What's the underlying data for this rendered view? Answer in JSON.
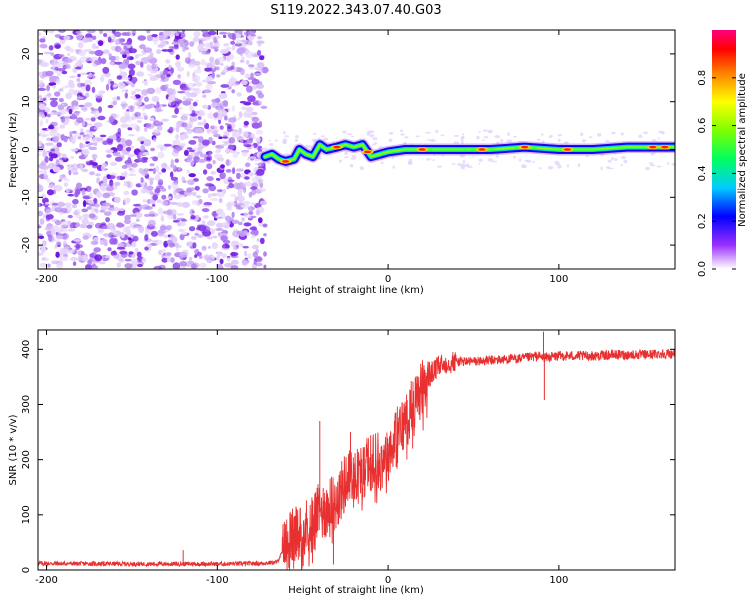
{
  "title": "S119.2022.343.07.40.G03",
  "chart_data": [
    {
      "type": "heatmap",
      "xlabel": "Height of straight line (km)",
      "ylabel": "Frequency (Hz)",
      "xlim": [
        -205,
        168
      ],
      "ylim": [
        -25,
        25
      ],
      "xticks": [
        -200,
        -100,
        0,
        100
      ],
      "yticks": [
        -20,
        -10,
        0,
        10,
        20
      ],
      "noise_region_x": [
        -205,
        -72
      ],
      "tone_track": [
        {
          "x": -72,
          "y": -1.5
        },
        {
          "x": -68,
          "y": -1.0
        },
        {
          "x": -64,
          "y": -2.0
        },
        {
          "x": -60,
          "y": -2.5
        },
        {
          "x": -55,
          "y": -2.0
        },
        {
          "x": -52,
          "y": 0.0
        },
        {
          "x": -48,
          "y": -1.0
        },
        {
          "x": -44,
          "y": -1.5
        },
        {
          "x": -40,
          "y": 1.0
        },
        {
          "x": -36,
          "y": 0.0
        },
        {
          "x": -30,
          "y": 0.5
        },
        {
          "x": -25,
          "y": 1.0
        },
        {
          "x": -20,
          "y": 0.5
        },
        {
          "x": -15,
          "y": 1.0
        },
        {
          "x": -10,
          "y": -1.5
        },
        {
          "x": -5,
          "y": -1.0
        },
        {
          "x": 0,
          "y": -0.5
        },
        {
          "x": 10,
          "y": 0.0
        },
        {
          "x": 20,
          "y": 0.0
        },
        {
          "x": 40,
          "y": 0.0
        },
        {
          "x": 60,
          "y": 0.0
        },
        {
          "x": 80,
          "y": 0.5
        },
        {
          "x": 100,
          "y": 0.0
        },
        {
          "x": 120,
          "y": 0.0
        },
        {
          "x": 140,
          "y": 0.5
        },
        {
          "x": 160,
          "y": 0.5
        },
        {
          "x": 168,
          "y": 0.5
        }
      ],
      "colorbar": {
        "label": "Normalized spectral amplitude",
        "ticks": [
          "0.0",
          "0.2",
          "0.4",
          "0.6",
          "0.8"
        ],
        "range": [
          0,
          1
        ]
      }
    },
    {
      "type": "line",
      "xlabel": "Height of straight line (km)",
      "ylabel": "SNR (10 * v/v)",
      "xlim": [
        -205,
        168
      ],
      "ylim": [
        0,
        435
      ],
      "xticks": [
        -200,
        -100,
        0,
        100
      ],
      "yticks": [
        0,
        100,
        200,
        300,
        400
      ],
      "series": [
        {
          "name": "SNR",
          "color": "#e83030",
          "x": [
            -205,
            -150,
            -100,
            -75,
            -65,
            -58,
            -50,
            -45,
            -40,
            -35,
            -30,
            -25,
            -20,
            -15,
            -10,
            -5,
            0,
            5,
            10,
            15,
            20,
            25,
            30,
            35,
            40,
            50,
            60,
            70,
            80,
            88,
            90,
            92,
            100,
            110,
            120,
            130,
            140,
            150,
            160,
            168
          ],
          "values": [
            12,
            11,
            11,
            12,
            14,
            55,
            70,
            85,
            105,
            110,
            125,
            160,
            170,
            175,
            195,
            195,
            215,
            240,
            270,
            300,
            330,
            355,
            370,
            375,
            378,
            378,
            380,
            382,
            384,
            388,
            385,
            385,
            388,
            388,
            388,
            390,
            390,
            390,
            392,
            392
          ],
          "spikes": [
            {
              "x": -120,
              "y": 36
            },
            {
              "x": -40,
              "y": 270
            },
            {
              "x": -32,
              "y": 10
            },
            {
              "x": -22,
              "y": 250
            },
            {
              "x": 91,
              "y": 432
            },
            {
              "x": 91.5,
              "y": 308
            }
          ]
        }
      ]
    }
  ]
}
